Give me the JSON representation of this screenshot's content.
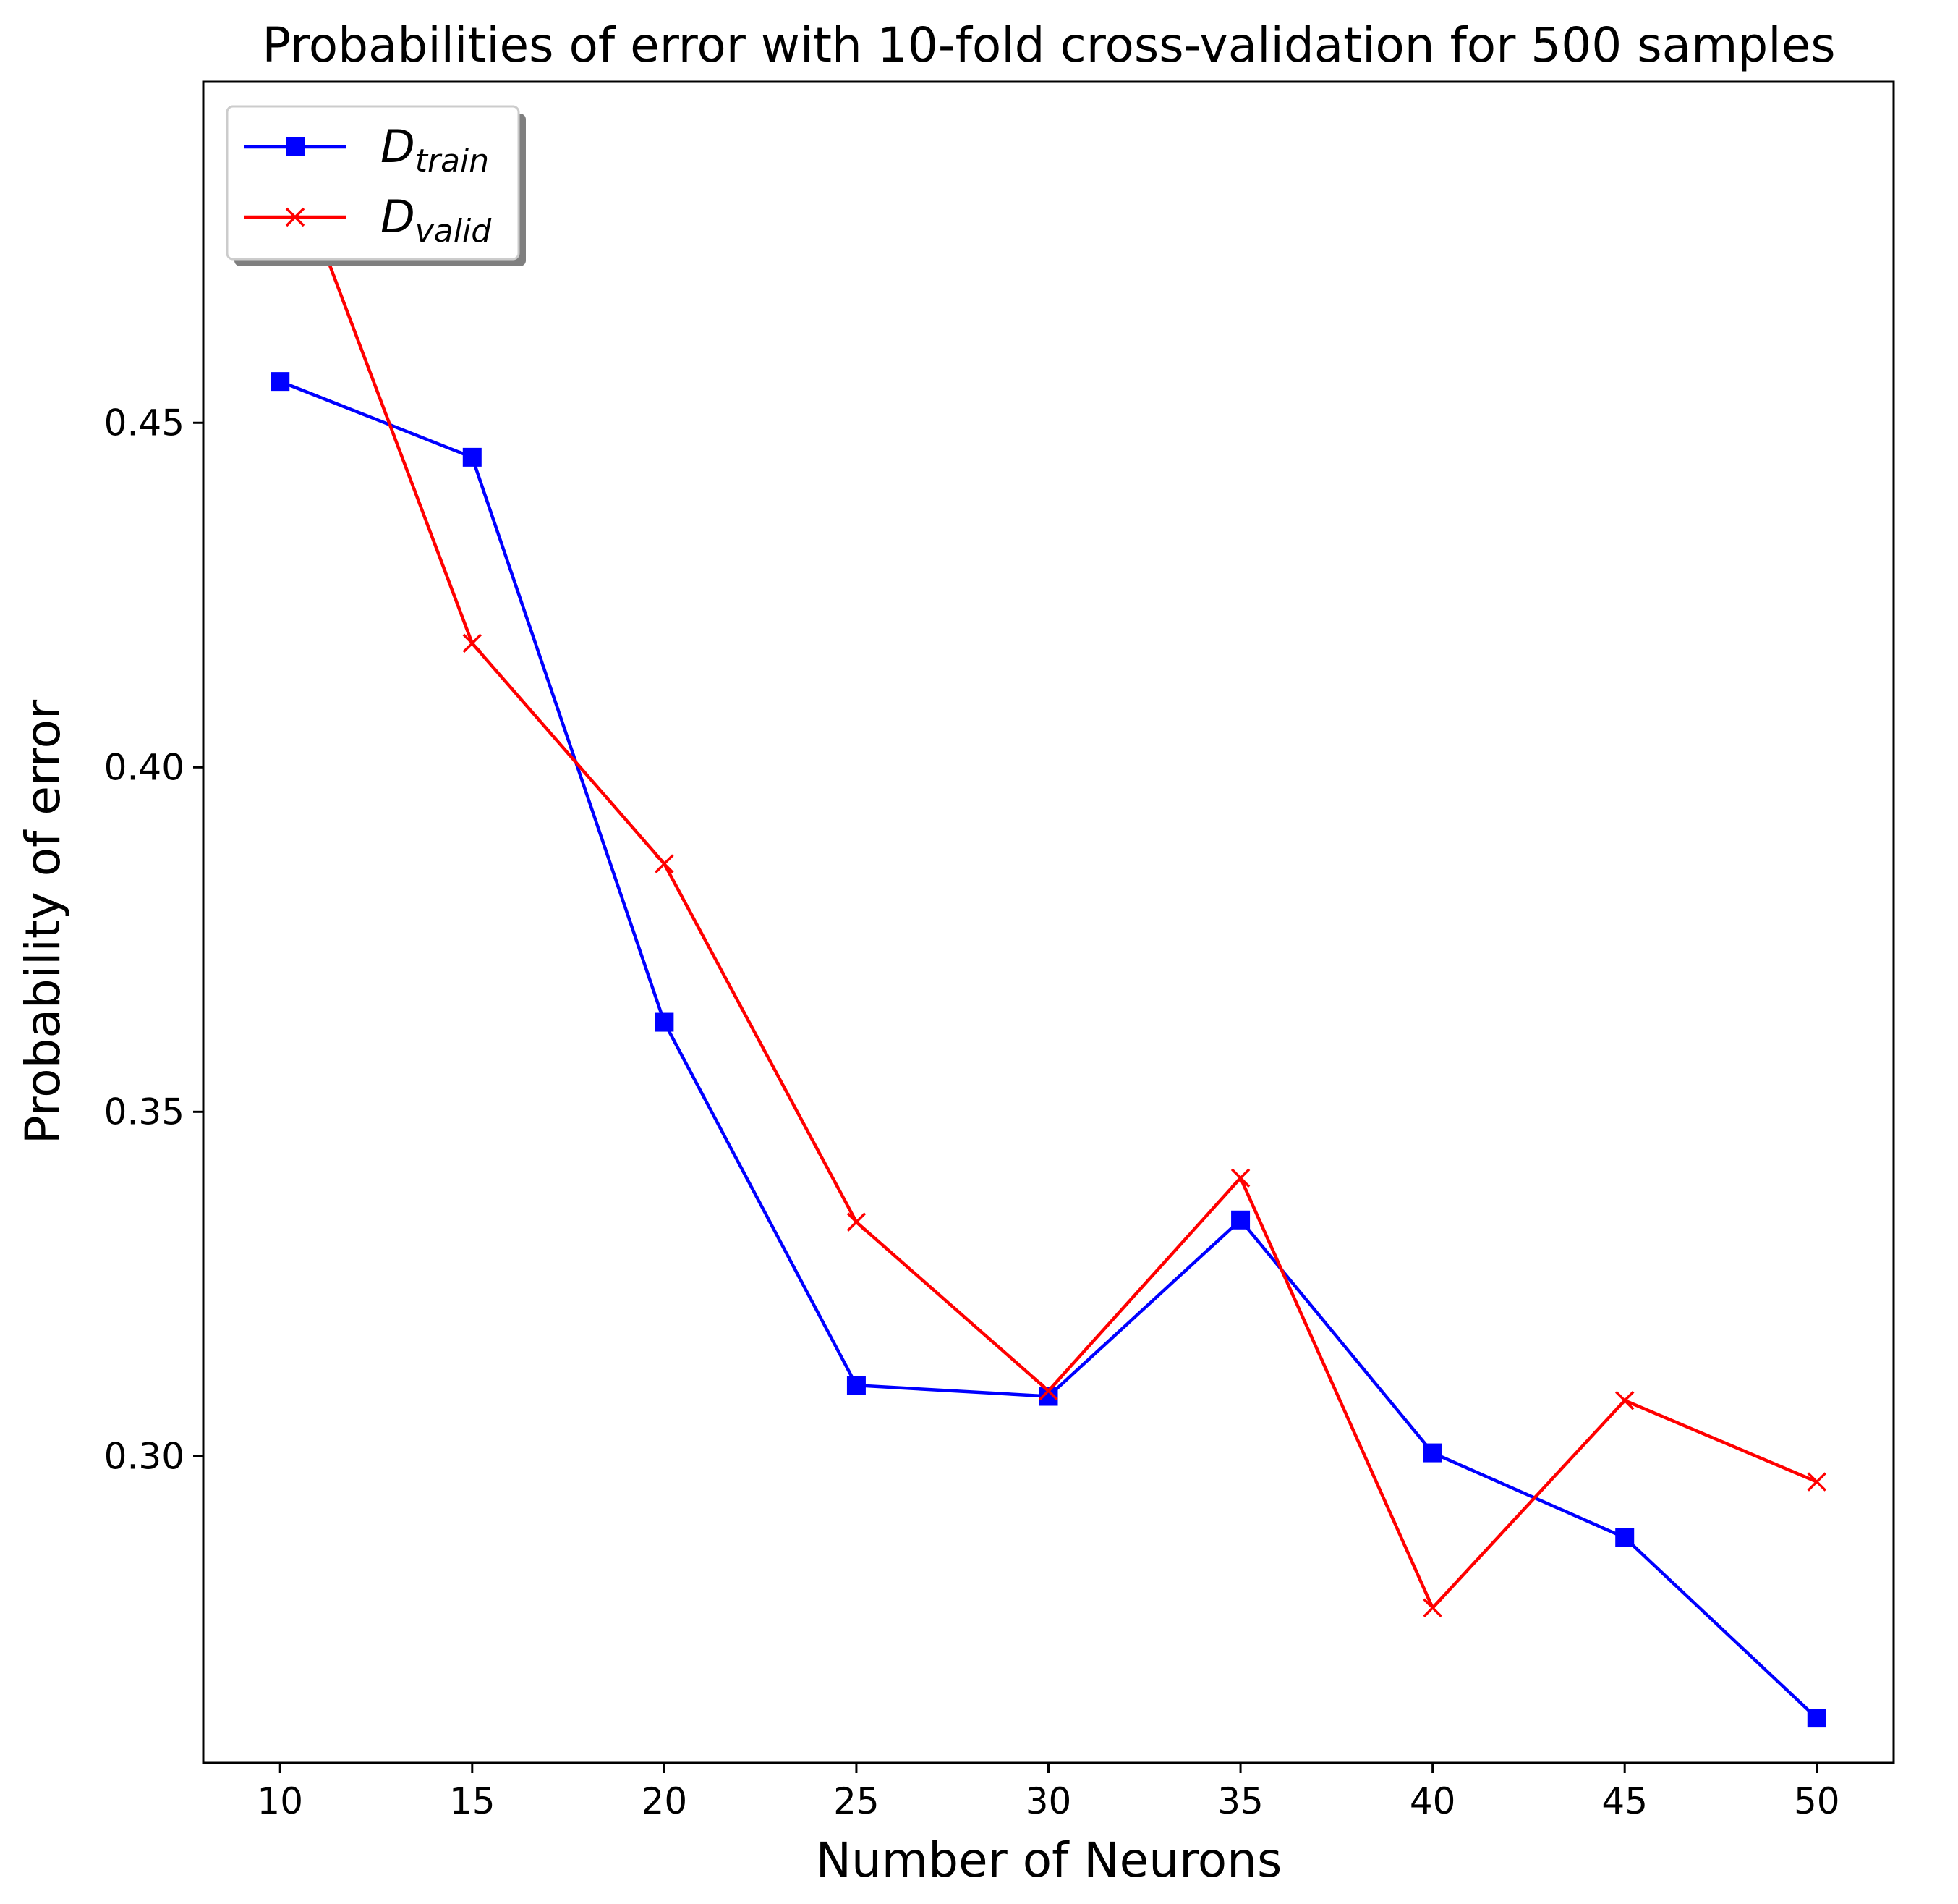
{
  "chart_data": {
    "type": "line",
    "title": "Probabilities of error with 10-fold cross-validation for 500 samples",
    "xlabel": "Number of Neurons",
    "ylabel": "Probability of error",
    "x": [
      10,
      15,
      20,
      25,
      30,
      35,
      40,
      45,
      50
    ],
    "xticks": [
      "10",
      "15",
      "20",
      "25",
      "30",
      "35",
      "40",
      "45",
      "50"
    ],
    "yticks": [
      "0.30",
      "0.35",
      "0.40",
      "0.45"
    ],
    "xlim": [
      8,
      52
    ],
    "ylim": [
      0.2555,
      0.4995
    ],
    "grid": false,
    "legend_position": "top-left",
    "series": [
      {
        "name": "D_train",
        "legend_main": "D",
        "legend_sub": "train",
        "color": "#0000ff",
        "marker": "square",
        "values": [
          0.456,
          0.445,
          0.363,
          0.3103,
          0.3087,
          0.3343,
          0.3005,
          0.2882,
          0.262
        ]
      },
      {
        "name": "D_valid",
        "legend_main": "D",
        "legend_sub": "valid",
        "color": "#ff0000",
        "marker": "x",
        "values": [
          0.492,
          0.418,
          0.386,
          0.334,
          0.3095,
          0.3404,
          0.278,
          0.3081,
          0.2963
        ]
      }
    ]
  }
}
